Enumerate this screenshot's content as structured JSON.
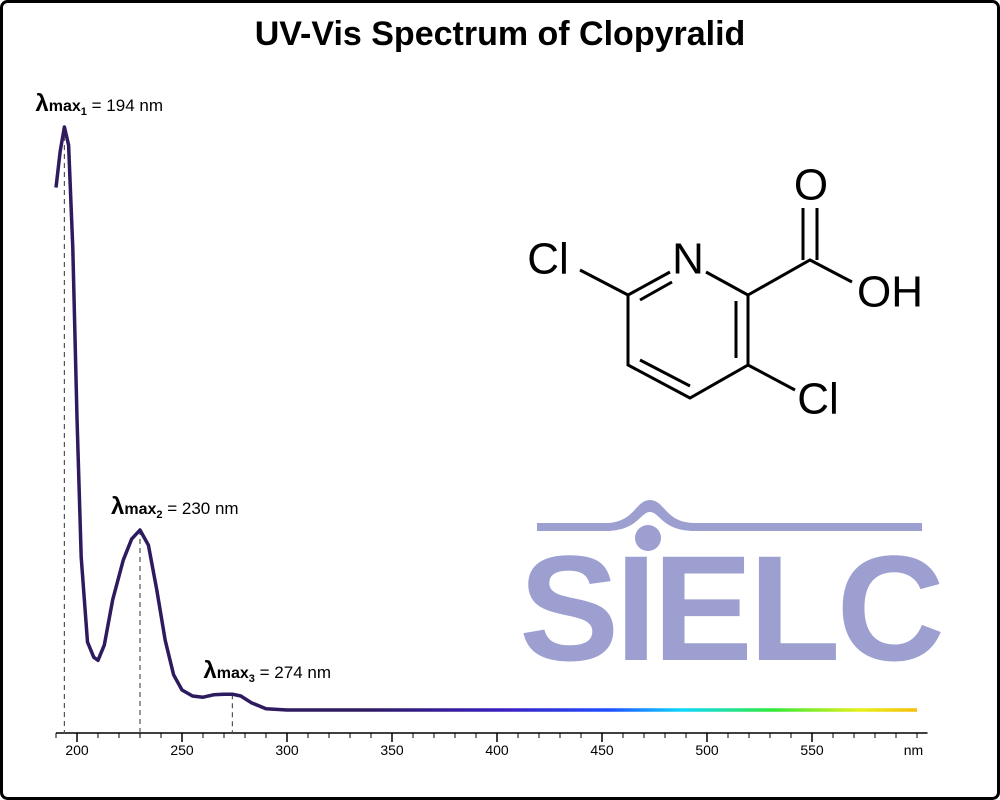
{
  "chart_data": {
    "type": "line",
    "title": "UV-Vis Spectrum of Clopyralid",
    "x": [
      190,
      192,
      194,
      196,
      198,
      200,
      202,
      205,
      208,
      210,
      213,
      217,
      222,
      226,
      230,
      234,
      238,
      242,
      246,
      250,
      255,
      260,
      265,
      270,
      274,
      278,
      283,
      290,
      300,
      350,
      400,
      450,
      500,
      550,
      600
    ],
    "series": [
      {
        "color": "#2e1a5e",
        "values": [
          0.9,
          0.96,
          1.0,
          0.97,
          0.8,
          0.52,
          0.29,
          0.15,
          0.125,
          0.12,
          0.145,
          0.22,
          0.285,
          0.32,
          0.335,
          0.31,
          0.236,
          0.153,
          0.096,
          0.071,
          0.061,
          0.059,
          0.063,
          0.064,
          0.064,
          0.061,
          0.05,
          0.04,
          0.038,
          0.038,
          0.038,
          0.038,
          0.038,
          0.038,
          0.038
        ]
      }
    ],
    "xlim": [
      190,
      605
    ],
    "ylim": [
      0,
      1.0
    ],
    "xticks": [
      200,
      250,
      300,
      350,
      400,
      450,
      500,
      550
    ],
    "xminorticks": [
      190,
      210,
      220,
      230,
      240,
      260,
      270,
      280,
      290,
      310,
      320,
      330,
      340,
      360,
      370,
      380,
      390,
      410,
      420,
      430,
      440,
      460,
      470,
      480,
      490,
      510,
      520,
      530,
      540,
      560,
      570,
      580,
      590,
      600
    ],
    "x_unit": "nm",
    "annotations": [
      {
        "symbol": "λ",
        "subscript": "max",
        "index": "1",
        "text": " = 194 nm",
        "x": 194,
        "y": 1.0
      },
      {
        "symbol": "λ",
        "subscript": "max",
        "index": "2",
        "text": " = 230 nm",
        "x": 230,
        "y": 0.335
      },
      {
        "symbol": "λ",
        "subscript": "max",
        "index": "3",
        "text": " = 274 nm",
        "x": 274,
        "y": 0.064
      }
    ]
  },
  "structure": {
    "atoms": [
      "Cl",
      "N",
      "O",
      "OH",
      "Cl"
    ]
  },
  "logo": "SIELC"
}
